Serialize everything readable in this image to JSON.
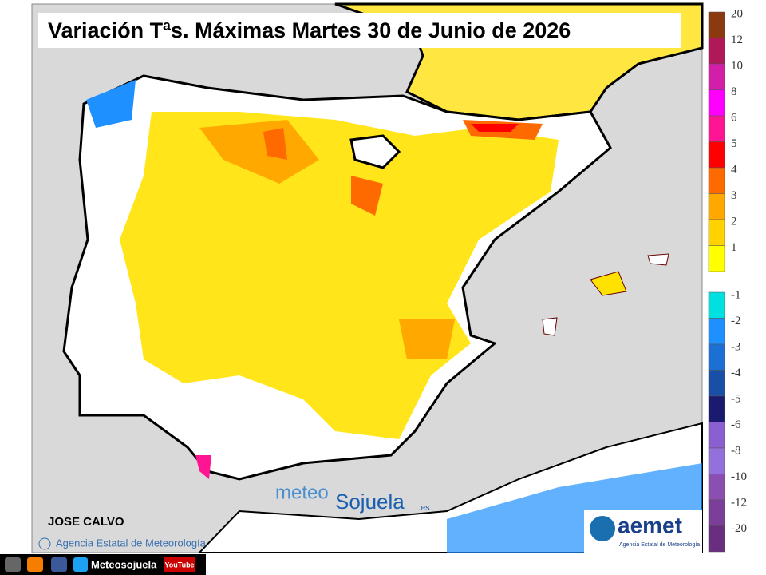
{
  "title": "Variación Tªs. Máximas Martes 30 de Junio de 2026",
  "legend": {
    "positive": [
      {
        "label": "20",
        "color": "#8b3a10"
      },
      {
        "label": "12",
        "color": "#b0185a"
      },
      {
        "label": "10",
        "color": "#d21ea8"
      },
      {
        "label": "8",
        "color": "#ff00ff"
      },
      {
        "label": "6",
        "color": "#ff1493"
      },
      {
        "label": "5",
        "color": "#ff0000"
      },
      {
        "label": "4",
        "color": "#ff6a00"
      },
      {
        "label": "3",
        "color": "#ffa800"
      },
      {
        "label": "2",
        "color": "#ffd200"
      },
      {
        "label": "1",
        "color": "#ffff00"
      }
    ],
    "negative": [
      {
        "label": "-1",
        "color": "#00e0e0"
      },
      {
        "label": "-2",
        "color": "#1e90ff"
      },
      {
        "label": "-3",
        "color": "#1c70d4"
      },
      {
        "label": "-4",
        "color": "#1a4fa8"
      },
      {
        "label": "-5",
        "color": "#1a1a6e"
      },
      {
        "label": "-6",
        "color": "#8a5fd0"
      },
      {
        "label": "-8",
        "color": "#9370db"
      },
      {
        "label": "-10",
        "color": "#8a4fb0"
      },
      {
        "label": "-12",
        "color": "#7b3f9a"
      },
      {
        "label": "-20",
        "color": "#6a2e80"
      }
    ]
  },
  "credits": {
    "author": "JOSE CALVO",
    "source": "Agencia Estatal de Meteorología",
    "watermark_1": "meteo",
    "watermark_2": "Sojuela",
    "watermark_3": ".es",
    "logo": "aemet",
    "logo_subtitle": "Agencia Estatal de Meteorología"
  },
  "footer": {
    "social": "Meteosojuela",
    "youtube": "YouTube"
  }
}
